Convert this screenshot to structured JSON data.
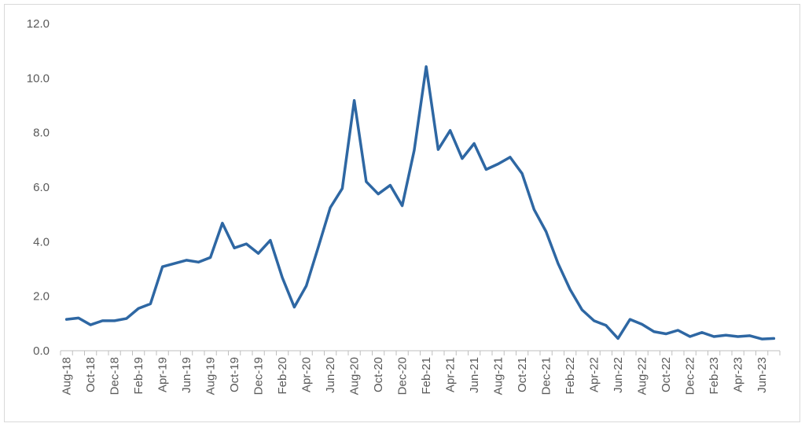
{
  "chart_data": {
    "type": "line",
    "title": "",
    "xlabel": "",
    "ylabel": "",
    "ylim": [
      0,
      12
    ],
    "y_ticks": [
      "0.0",
      "2.0",
      "4.0",
      "6.0",
      "8.0",
      "10.0",
      "12.0"
    ],
    "grid": false,
    "legend": "none",
    "colors": {
      "line": "#2e67a3",
      "axis": "#bfbfbf",
      "text": "#595959"
    },
    "x": [
      "Aug-18",
      "Sep-18",
      "Oct-18",
      "Nov-18",
      "Dec-18",
      "Jan-19",
      "Feb-19",
      "Mar-19",
      "Apr-19",
      "May-19",
      "Jun-19",
      "Jul-19",
      "Aug-19",
      "Sep-19",
      "Oct-19",
      "Nov-19",
      "Dec-19",
      "Jan-20",
      "Feb-20",
      "Mar-20",
      "Apr-20",
      "May-20",
      "Jun-20",
      "Jul-20",
      "Aug-20",
      "Sep-20",
      "Oct-20",
      "Nov-20",
      "Dec-20",
      "Jan-21",
      "Feb-21",
      "Mar-21",
      "Apr-21",
      "May-21",
      "Jun-21",
      "Jul-21",
      "Aug-21",
      "Sep-21",
      "Oct-21",
      "Nov-21",
      "Dec-21",
      "Jan-22",
      "Feb-22",
      "Mar-22",
      "Apr-22",
      "May-22",
      "Jun-22",
      "Jul-22",
      "Aug-22",
      "Sep-22",
      "Oct-22",
      "Nov-22",
      "Dec-22",
      "Jan-23",
      "Feb-23",
      "Mar-23",
      "Apr-23",
      "May-23",
      "Jun-23",
      "Jul-23"
    ],
    "x_tick_labels": [
      "Aug-18",
      "Oct-18",
      "Dec-18",
      "Feb-19",
      "Apr-19",
      "Jun-19",
      "Aug-19",
      "Oct-19",
      "Dec-19",
      "Feb-20",
      "Apr-20",
      "Jun-20",
      "Aug-20",
      "Oct-20",
      "Dec-20",
      "Feb-21",
      "Apr-21",
      "Jun-21",
      "Aug-21",
      "Oct-21",
      "Dec-21",
      "Feb-22",
      "Apr-22",
      "Jun-22",
      "Aug-22",
      "Oct-22",
      "Dec-22",
      "Feb-23",
      "Apr-23",
      "Jun-23"
    ],
    "series": [
      {
        "values": [
          1.15,
          1.2,
          0.95,
          1.1,
          1.1,
          1.18,
          1.55,
          1.72,
          3.08,
          3.2,
          3.32,
          3.25,
          3.42,
          4.68,
          3.77,
          3.92,
          3.57,
          4.05,
          2.68,
          1.6,
          2.38,
          3.8,
          5.25,
          5.95,
          9.18,
          6.2,
          5.75,
          6.07,
          5.32,
          7.35,
          10.42,
          7.38,
          8.08,
          7.05,
          7.6,
          6.65,
          6.85,
          7.1,
          6.5,
          5.18,
          4.37,
          3.2,
          2.25,
          1.5,
          1.1,
          0.93,
          0.45,
          1.15,
          0.97,
          0.7,
          0.62,
          0.75,
          0.52,
          0.67,
          0.52,
          0.57,
          0.52,
          0.55,
          0.43,
          0.45
        ]
      }
    ]
  }
}
